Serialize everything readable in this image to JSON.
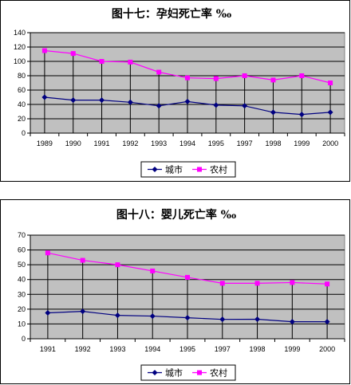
{
  "chart_data": [
    {
      "type": "line",
      "title": "图十七：孕妇死亡率 ‰",
      "categories": [
        "1989",
        "1990",
        "1991",
        "1992",
        "1993",
        "1994",
        "1995",
        "1997",
        "1998",
        "1999",
        "2000"
      ],
      "series": [
        {
          "name": "城市",
          "color": "#000080",
          "marker": "diamond",
          "values": [
            50,
            46,
            46,
            43,
            38,
            44,
            39,
            38,
            29,
            26,
            29
          ]
        },
        {
          "name": "农村",
          "color": "#ff00ff",
          "marker": "square",
          "values": [
            115,
            111,
            100,
            99,
            85,
            77,
            76,
            80,
            74,
            80,
            70
          ]
        }
      ],
      "ylim": [
        0,
        140
      ],
      "yticks": [
        0,
        20,
        40,
        60,
        80,
        100,
        120,
        140
      ],
      "plot_background": "#c0c0c0",
      "grid": true,
      "drop_lines": true,
      "legend_position": "bottom"
    },
    {
      "type": "line",
      "title": "图十八：婴儿死亡率 ‰",
      "categories": [
        "1991",
        "1992",
        "1993",
        "1994",
        "1995",
        "1997",
        "1998",
        "1999",
        "2000"
      ],
      "series": [
        {
          "name": "城市",
          "color": "#000080",
          "marker": "diamond",
          "values": [
            17.5,
            18.5,
            15.8,
            15.3,
            14.2,
            13.1,
            13.2,
            11.5,
            11.5
          ]
        },
        {
          "name": "农村",
          "color": "#ff00ff",
          "marker": "square",
          "values": [
            58,
            53,
            50,
            45.8,
            41.5,
            37.5,
            37.5,
            38,
            37
          ]
        }
      ],
      "ylim": [
        0,
        70
      ],
      "yticks": [
        0,
        10,
        20,
        30,
        40,
        50,
        60,
        70
      ],
      "plot_background": "#c0c0c0",
      "grid": true,
      "drop_lines": true,
      "legend_position": "bottom"
    }
  ]
}
